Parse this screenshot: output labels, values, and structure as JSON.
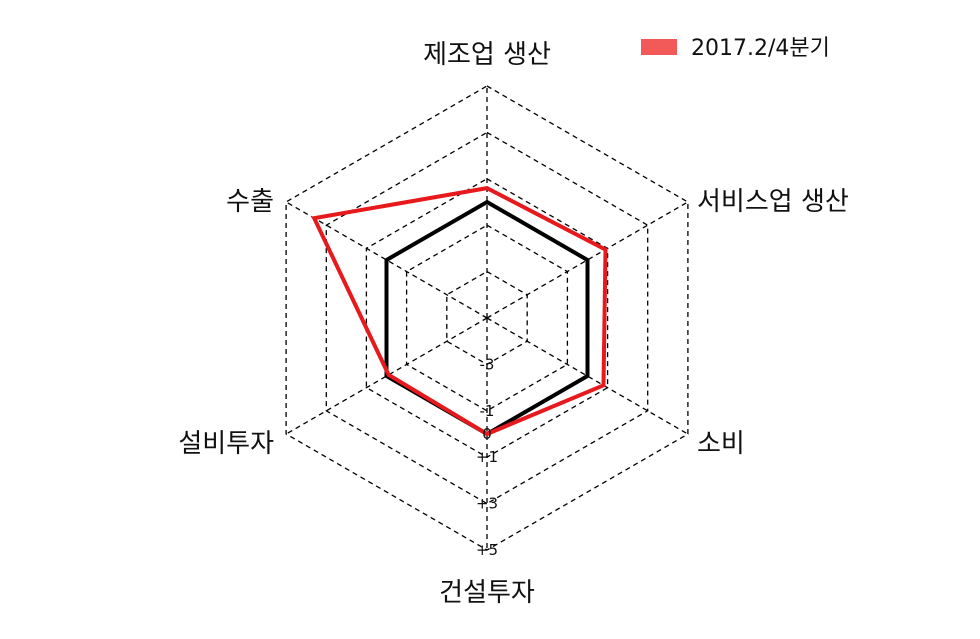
{
  "chart_data": {
    "type": "radar",
    "axes": [
      "제조업 생산",
      "서비스업 생산",
      "소비",
      "건설투자",
      "설비투자",
      "수출"
    ],
    "range": [
      -5,
      5
    ],
    "grid_values": [
      -5,
      -3,
      -1,
      1,
      3,
      5
    ],
    "tick_labels": [
      "-3",
      "-1",
      "0",
      "+1",
      "+3",
      "+5"
    ],
    "tick_values": [
      -3,
      -1,
      0,
      1,
      3,
      5
    ],
    "reference_value": 0,
    "series": [
      {
        "name": "2017.2/4분기",
        "values": [
          0.6,
          0.9,
          0.8,
          0.0,
          -0.1,
          3.6
        ],
        "color": "#e8191c"
      }
    ],
    "reference_color": "#000000",
    "legend_color": "#f25a5a",
    "legend_position": "top-right",
    "grid_style": "dashed"
  }
}
